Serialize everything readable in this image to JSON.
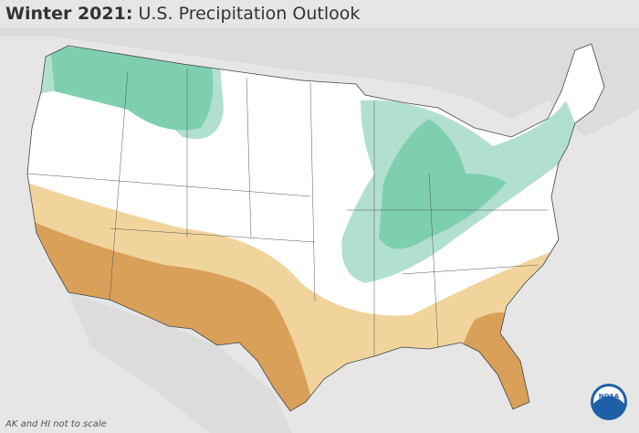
{
  "title": {
    "bold": "Winter 2021:",
    "rest": "U.S. Precipitation Outlook"
  },
  "footnote": "AK and HI not to scale",
  "logo": "NOAA"
}
